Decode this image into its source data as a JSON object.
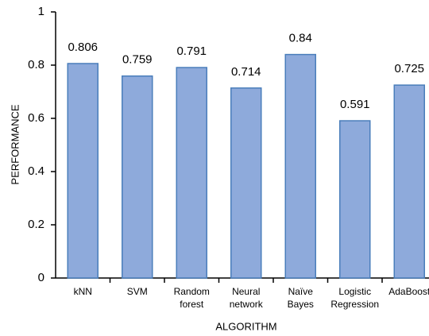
{
  "chart_data": {
    "type": "bar",
    "x_label": "ALGORITHM",
    "y_label": "PERFORMANCE",
    "categories": [
      "kNN",
      "SVM",
      "Random forest",
      "Neural network",
      "Naïve Bayes",
      "Logistic Regression",
      "AdaBoost"
    ],
    "values": [
      0.806,
      0.759,
      0.791,
      0.714,
      0.84,
      0.591,
      0.725
    ],
    "color": "#8eaadb",
    "edge_color": "#4a7ebb",
    "ylim": [
      0,
      1
    ],
    "yticks": [
      0,
      0.2,
      0.4,
      0.6,
      0.8,
      1
    ],
    "grid": false
  }
}
